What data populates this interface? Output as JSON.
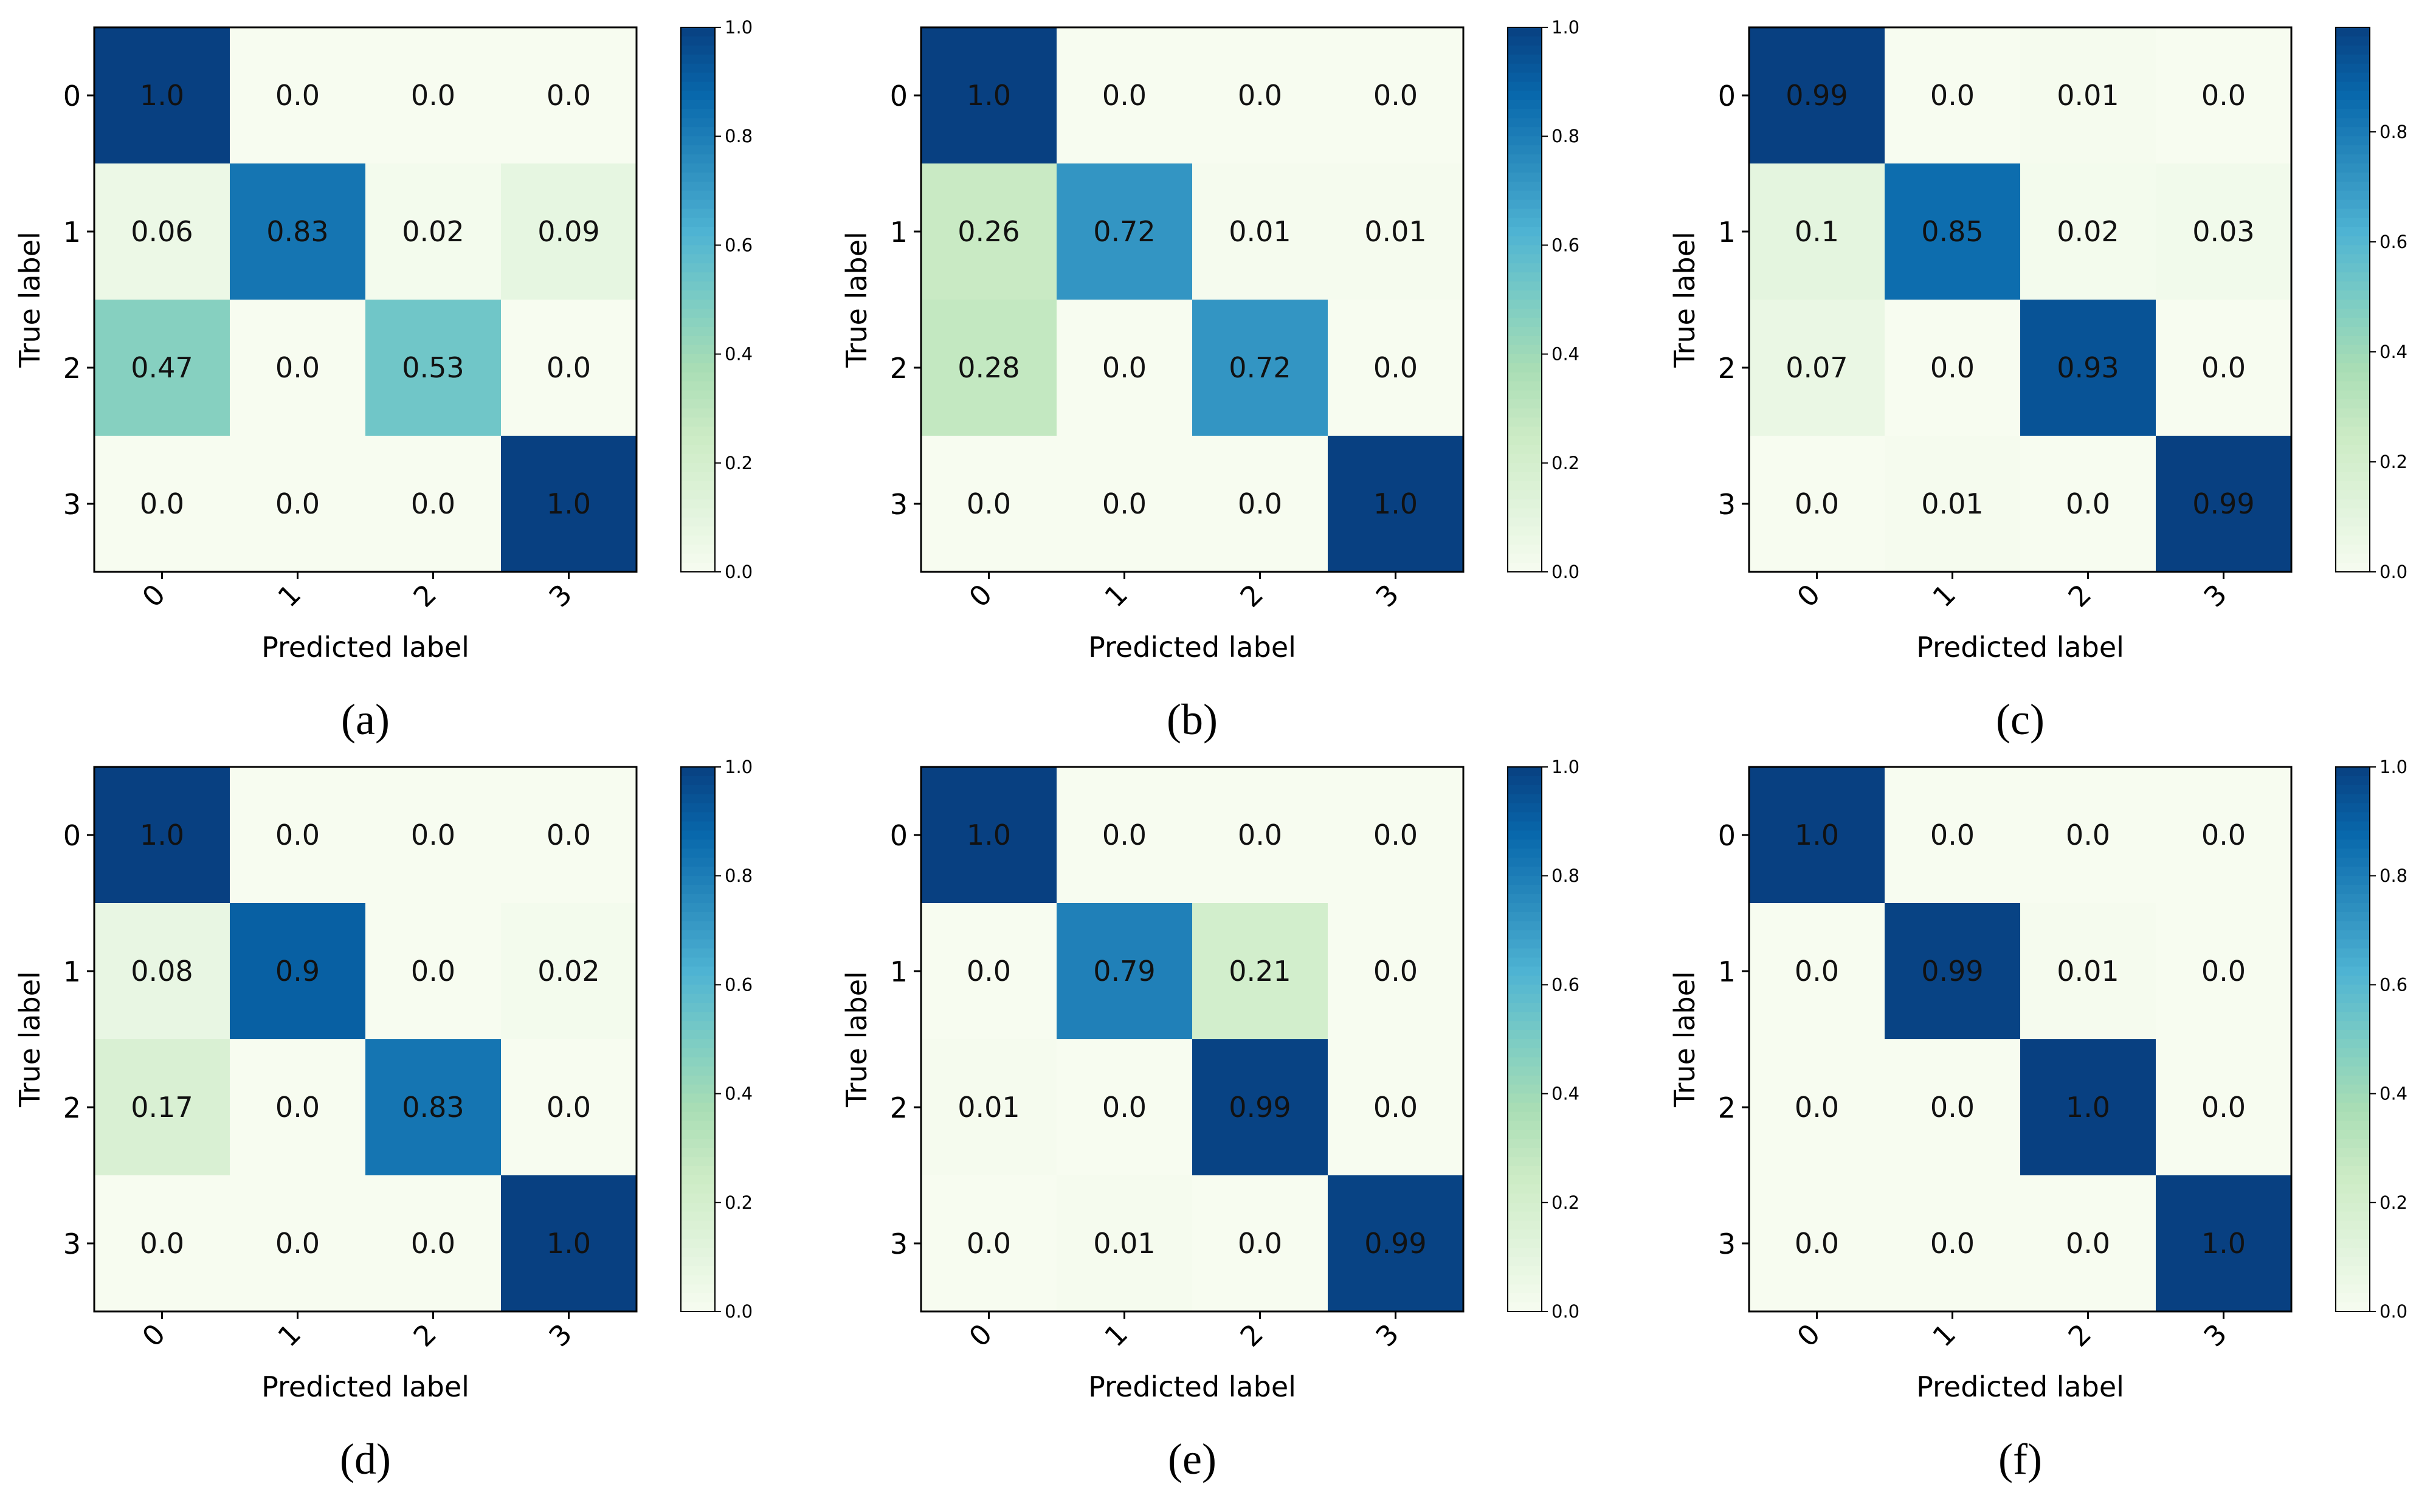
{
  "figure": {
    "colorbar_ticks": [
      "0.0",
      "0.2",
      "0.4",
      "0.6",
      "0.8",
      "1.0"
    ],
    "colorbar_ticks_c": [
      "0.0",
      "0.2",
      "0.4",
      "0.6",
      "0.8"
    ],
    "colormap": "GnBu",
    "colors": {
      "low": "#f7fcf0",
      "mid": "#7bccc4",
      "high": "#084081"
    }
  },
  "chart_data": [
    {
      "type": "heatmap",
      "caption": "(a)",
      "xlabel": "Predicted label",
      "ylabel": "True label",
      "x_categories": [
        "0",
        "1",
        "2",
        "3"
      ],
      "y_categories": [
        "0",
        "1",
        "2",
        "3"
      ],
      "colorbar_range": [
        0,
        1.0
      ],
      "cell_labels": [
        [
          "1.0",
          "0.0",
          "0.0",
          "0.0"
        ],
        [
          "0.06",
          "0.83",
          "0.02",
          "0.09"
        ],
        [
          "0.47",
          "0.0",
          "0.53",
          "0.0"
        ],
        [
          "0.0",
          "0.0",
          "0.0",
          "1.0"
        ]
      ],
      "values": [
        [
          1.0,
          0.0,
          0.0,
          0.0
        ],
        [
          0.06,
          0.83,
          0.02,
          0.09
        ],
        [
          0.47,
          0.0,
          0.53,
          0.0
        ],
        [
          0.0,
          0.0,
          0.0,
          1.0
        ]
      ]
    },
    {
      "type": "heatmap",
      "caption": "(b)",
      "xlabel": "Predicted label",
      "ylabel": "True label",
      "x_categories": [
        "0",
        "1",
        "2",
        "3"
      ],
      "y_categories": [
        "0",
        "1",
        "2",
        "3"
      ],
      "colorbar_range": [
        0,
        1.0
      ],
      "cell_labels": [
        [
          "1.0",
          "0.0",
          "0.0",
          "0.0"
        ],
        [
          "0.26",
          "0.72",
          "0.01",
          "0.01"
        ],
        [
          "0.28",
          "0.0",
          "0.72",
          "0.0"
        ],
        [
          "0.0",
          "0.0",
          "0.0",
          "1.0"
        ]
      ],
      "values": [
        [
          1.0,
          0.0,
          0.0,
          0.0
        ],
        [
          0.26,
          0.72,
          0.01,
          0.01
        ],
        [
          0.28,
          0.0,
          0.72,
          0.0
        ],
        [
          0.0,
          0.0,
          0.0,
          1.0
        ]
      ]
    },
    {
      "type": "heatmap",
      "caption": "(c)",
      "xlabel": "Predicted label",
      "ylabel": "True label",
      "x_categories": [
        "0",
        "1",
        "2",
        "3"
      ],
      "y_categories": [
        "0",
        "1",
        "2",
        "3"
      ],
      "colorbar_range": [
        0,
        0.99
      ],
      "cell_labels": [
        [
          "0.99",
          "0.0",
          "0.01",
          "0.0"
        ],
        [
          "0.1",
          "0.85",
          "0.02",
          "0.03"
        ],
        [
          "0.07",
          "0.0",
          "0.93",
          "0.0"
        ],
        [
          "0.0",
          "0.01",
          "0.0",
          "0.99"
        ]
      ],
      "values": [
        [
          0.99,
          0.0,
          0.01,
          0.0
        ],
        [
          0.1,
          0.85,
          0.02,
          0.03
        ],
        [
          0.07,
          0.0,
          0.93,
          0.0
        ],
        [
          0.0,
          0.01,
          0.0,
          0.99
        ]
      ]
    },
    {
      "type": "heatmap",
      "caption": "(d)",
      "xlabel": "Predicted label",
      "ylabel": "True label",
      "x_categories": [
        "0",
        "1",
        "2",
        "3"
      ],
      "y_categories": [
        "0",
        "1",
        "2",
        "3"
      ],
      "colorbar_range": [
        0,
        1.0
      ],
      "cell_labels": [
        [
          "1.0",
          "0.0",
          "0.0",
          "0.0"
        ],
        [
          "0.08",
          "0.9",
          "0.0",
          "0.02"
        ],
        [
          "0.17",
          "0.0",
          "0.83",
          "0.0"
        ],
        [
          "0.0",
          "0.0",
          "0.0",
          "1.0"
        ]
      ],
      "values": [
        [
          1.0,
          0.0,
          0.0,
          0.0
        ],
        [
          0.08,
          0.9,
          0.0,
          0.02
        ],
        [
          0.17,
          0.0,
          0.83,
          0.0
        ],
        [
          0.0,
          0.0,
          0.0,
          1.0
        ]
      ]
    },
    {
      "type": "heatmap",
      "caption": "(e)",
      "xlabel": "Predicted label",
      "ylabel": "True label",
      "x_categories": [
        "0",
        "1",
        "2",
        "3"
      ],
      "y_categories": [
        "0",
        "1",
        "2",
        "3"
      ],
      "colorbar_range": [
        0,
        1.0
      ],
      "cell_labels": [
        [
          "1.0",
          "0.0",
          "0.0",
          "0.0"
        ],
        [
          "0.0",
          "0.79",
          "0.21",
          "0.0"
        ],
        [
          "0.01",
          "0.0",
          "0.99",
          "0.0"
        ],
        [
          "0.0",
          "0.01",
          "0.0",
          "0.99"
        ]
      ],
      "values": [
        [
          1.0,
          0.0,
          0.0,
          0.0
        ],
        [
          0.0,
          0.79,
          0.21,
          0.0
        ],
        [
          0.01,
          0.0,
          0.99,
          0.0
        ],
        [
          0.0,
          0.01,
          0.0,
          0.99
        ]
      ]
    },
    {
      "type": "heatmap",
      "caption": "(f)",
      "xlabel": "Predicted label",
      "ylabel": "True label",
      "x_categories": [
        "0",
        "1",
        "2",
        "3"
      ],
      "y_categories": [
        "0",
        "1",
        "2",
        "3"
      ],
      "colorbar_range": [
        0,
        1.0
      ],
      "cell_labels": [
        [
          "1.0",
          "0.0",
          "0.0",
          "0.0"
        ],
        [
          "0.0",
          "0.99",
          "0.01",
          "0.0"
        ],
        [
          "0.0",
          "0.0",
          "1.0",
          "0.0"
        ],
        [
          "0.0",
          "0.0",
          "0.0",
          "1.0"
        ]
      ],
      "values": [
        [
          1.0,
          0.0,
          0.0,
          0.0
        ],
        [
          0.0,
          0.99,
          0.01,
          0.0
        ],
        [
          0.0,
          0.0,
          1.0,
          0.0
        ],
        [
          0.0,
          0.0,
          0.0,
          1.0
        ]
      ]
    }
  ]
}
